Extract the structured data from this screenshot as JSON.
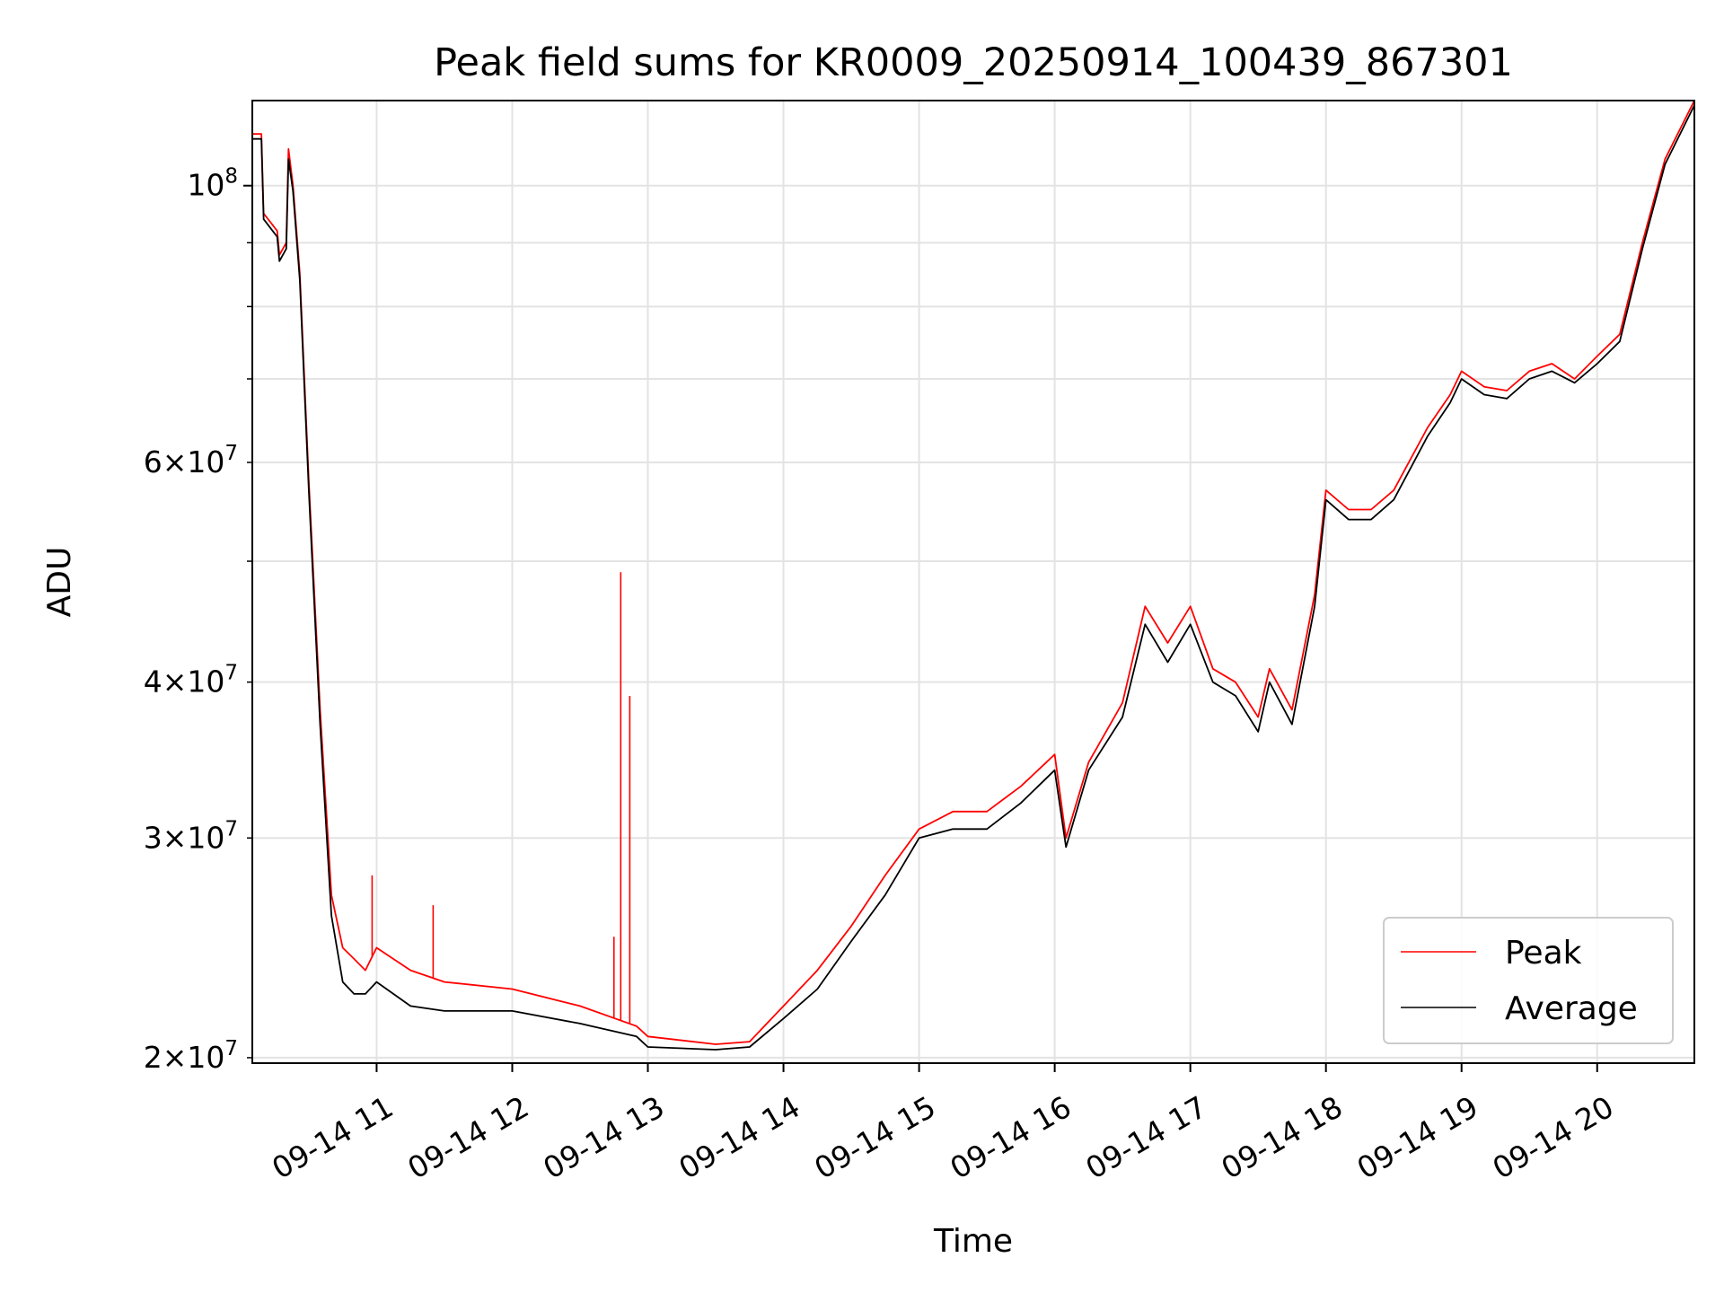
{
  "chart_data": {
    "type": "line",
    "title": "Peak field sums for KR0009_20250914_100439_867301",
    "xlabel": "Time",
    "ylabel": "ADU",
    "yscale": "log",
    "ylim": [
      19800000,
      117000000
    ],
    "xlim": [
      "2025-09-14 10:05",
      "2025-09-14 20:43"
    ],
    "grid": true,
    "legend_position": "lower-right",
    "x_ticks": [
      {
        "value": "2025-09-14 11:00",
        "label": "09-14 11"
      },
      {
        "value": "2025-09-14 12:00",
        "label": "09-14 12"
      },
      {
        "value": "2025-09-14 13:00",
        "label": "09-14 13"
      },
      {
        "value": "2025-09-14 14:00",
        "label": "09-14 14"
      },
      {
        "value": "2025-09-14 15:00",
        "label": "09-14 15"
      },
      {
        "value": "2025-09-14 16:00",
        "label": "09-14 16"
      },
      {
        "value": "2025-09-14 17:00",
        "label": "09-14 17"
      },
      {
        "value": "2025-09-14 18:00",
        "label": "09-14 18"
      },
      {
        "value": "2025-09-14 19:00",
        "label": "09-14 19"
      },
      {
        "value": "2025-09-14 20:00",
        "label": "09-14 20"
      }
    ],
    "y_major_ticks": [
      {
        "value": 100000000,
        "mantissa": "",
        "base": "10",
        "exp": "8"
      }
    ],
    "y_minor_ticks": [
      {
        "value": 20000000,
        "mantissa": "2",
        "base": "10",
        "exp": "7"
      },
      {
        "value": 30000000,
        "mantissa": "3",
        "base": "10",
        "exp": "7"
      },
      {
        "value": 40000000,
        "mantissa": "4",
        "base": "10",
        "exp": "7"
      },
      {
        "value": 50000000,
        "mantissa": "",
        "base": "",
        "exp": ""
      },
      {
        "value": 60000000,
        "mantissa": "6",
        "base": "10",
        "exp": "7"
      },
      {
        "value": 70000000,
        "mantissa": "",
        "base": "",
        "exp": ""
      },
      {
        "value": 80000000,
        "mantissa": "",
        "base": "",
        "exp": ""
      },
      {
        "value": 90000000,
        "mantissa": "",
        "base": "",
        "exp": ""
      }
    ],
    "series": [
      {
        "name": "Peak",
        "color": "#ff0000",
        "x": [
          "2025-09-14 10:05",
          "2025-09-14 10:09",
          "2025-09-14 10:10",
          "2025-09-14 10:16",
          "2025-09-14 10:17",
          "2025-09-14 10:20",
          "2025-09-14 10:21",
          "2025-09-14 10:23",
          "2025-09-14 10:26",
          "2025-09-14 10:30",
          "2025-09-14 10:35",
          "2025-09-14 10:40",
          "2025-09-14 10:45",
          "2025-09-14 10:50",
          "2025-09-14 10:55",
          "2025-09-14 11:00",
          "2025-09-14 11:15",
          "2025-09-14 11:30",
          "2025-09-14 12:00",
          "2025-09-14 12:30",
          "2025-09-14 12:55",
          "2025-09-14 13:00",
          "2025-09-14 13:30",
          "2025-09-14 13:45",
          "2025-09-14 14:00",
          "2025-09-14 14:15",
          "2025-09-14 14:30",
          "2025-09-14 14:45",
          "2025-09-14 15:00",
          "2025-09-14 15:15",
          "2025-09-14 15:30",
          "2025-09-14 15:45",
          "2025-09-14 16:00",
          "2025-09-14 16:05",
          "2025-09-14 16:15",
          "2025-09-14 16:30",
          "2025-09-14 16:40",
          "2025-09-14 16:50",
          "2025-09-14 17:00",
          "2025-09-14 17:10",
          "2025-09-14 17:20",
          "2025-09-14 17:30",
          "2025-09-14 17:35",
          "2025-09-14 17:45",
          "2025-09-14 17:55",
          "2025-09-14 18:00",
          "2025-09-14 18:10",
          "2025-09-14 18:20",
          "2025-09-14 18:30",
          "2025-09-14 18:45",
          "2025-09-14 18:55",
          "2025-09-14 19:00",
          "2025-09-14 19:10",
          "2025-09-14 19:20",
          "2025-09-14 19:30",
          "2025-09-14 19:40",
          "2025-09-14 19:50",
          "2025-09-14 20:00",
          "2025-09-14 20:10",
          "2025-09-14 20:20",
          "2025-09-14 20:30",
          "2025-09-14 20:43"
        ],
        "values": [
          110000000,
          110000000,
          95000000,
          92000000,
          88000000,
          90000000,
          107000000,
          100000000,
          85000000,
          58000000,
          38000000,
          27000000,
          24500000,
          24000000,
          23500000,
          24500000,
          23500000,
          23000000,
          22700000,
          22000000,
          21200000,
          20800000,
          20500000,
          20600000,
          22000000,
          23500000,
          25500000,
          28000000,
          30500000,
          31500000,
          31500000,
          33000000,
          35000000,
          30000000,
          34500000,
          38500000,
          46000000,
          43000000,
          46000000,
          41000000,
          40000000,
          37500000,
          41000000,
          38000000,
          47000000,
          57000000,
          55000000,
          55000000,
          57000000,
          64000000,
          68000000,
          71000000,
          69000000,
          68500000,
          71000000,
          72000000,
          70000000,
          73000000,
          76000000,
          90000000,
          105000000,
          117000000
        ]
      },
      {
        "name": "Average",
        "color": "#000000",
        "x": [
          "2025-09-14 10:05",
          "2025-09-14 10:09",
          "2025-09-14 10:10",
          "2025-09-14 10:16",
          "2025-09-14 10:17",
          "2025-09-14 10:20",
          "2025-09-14 10:21",
          "2025-09-14 10:23",
          "2025-09-14 10:26",
          "2025-09-14 10:30",
          "2025-09-14 10:35",
          "2025-09-14 10:40",
          "2025-09-14 10:45",
          "2025-09-14 10:50",
          "2025-09-14 10:55",
          "2025-09-14 11:00",
          "2025-09-14 11:15",
          "2025-09-14 11:30",
          "2025-09-14 12:00",
          "2025-09-14 12:30",
          "2025-09-14 12:55",
          "2025-09-14 13:00",
          "2025-09-14 13:30",
          "2025-09-14 13:45",
          "2025-09-14 14:00",
          "2025-09-14 14:15",
          "2025-09-14 14:30",
          "2025-09-14 14:45",
          "2025-09-14 15:00",
          "2025-09-14 15:15",
          "2025-09-14 15:30",
          "2025-09-14 15:45",
          "2025-09-14 16:00",
          "2025-09-14 16:05",
          "2025-09-14 16:15",
          "2025-09-14 16:30",
          "2025-09-14 16:40",
          "2025-09-14 16:50",
          "2025-09-14 17:00",
          "2025-09-14 17:10",
          "2025-09-14 17:20",
          "2025-09-14 17:30",
          "2025-09-14 17:35",
          "2025-09-14 17:45",
          "2025-09-14 17:55",
          "2025-09-14 18:00",
          "2025-09-14 18:10",
          "2025-09-14 18:20",
          "2025-09-14 18:30",
          "2025-09-14 18:45",
          "2025-09-14 18:55",
          "2025-09-14 19:00",
          "2025-09-14 19:10",
          "2025-09-14 19:20",
          "2025-09-14 19:30",
          "2025-09-14 19:40",
          "2025-09-14 19:50",
          "2025-09-14 20:00",
          "2025-09-14 20:10",
          "2025-09-14 20:20",
          "2025-09-14 20:30",
          "2025-09-14 20:43"
        ],
        "values": [
          109000000,
          109000000,
          94000000,
          91000000,
          87000000,
          89000000,
          105000000,
          99000000,
          84000000,
          57000000,
          37000000,
          26000000,
          23000000,
          22500000,
          22500000,
          23000000,
          22000000,
          21800000,
          21800000,
          21300000,
          20800000,
          20400000,
          20300000,
          20400000,
          21500000,
          22700000,
          24800000,
          27000000,
          30000000,
          30500000,
          30500000,
          32000000,
          34000000,
          29500000,
          34000000,
          37500000,
          44500000,
          41500000,
          44500000,
          40000000,
          39000000,
          36500000,
          40000000,
          37000000,
          46000000,
          56000000,
          54000000,
          54000000,
          56000000,
          63000000,
          67000000,
          70000000,
          68000000,
          67500000,
          70000000,
          71000000,
          69500000,
          72000000,
          75000000,
          89000000,
          104000000,
          116000000
        ]
      }
    ],
    "spikes": [
      {
        "x": "2025-09-14 12:48",
        "value": 49000000
      },
      {
        "x": "2025-09-14 12:52",
        "value": 39000000
      },
      {
        "x": "2025-09-14 10:58",
        "value": 28000000
      },
      {
        "x": "2025-09-14 11:25",
        "value": 26500000
      },
      {
        "x": "2025-09-14 12:45",
        "value": 25000000
      }
    ]
  }
}
